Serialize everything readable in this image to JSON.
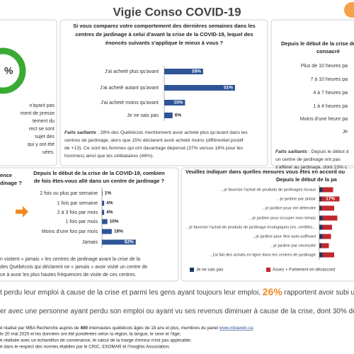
{
  "page_title": "Vigie Conso COVID-19",
  "left_panel": {
    "ring_label": "%",
    "lines": [
      "n'ayant pas",
      "ment de presse",
      "tement du",
      "rect se sont",
      "sujet des",
      "qui y ont été",
      "uées."
    ]
  },
  "chart_data": [
    {
      "type": "bar",
      "title": [
        "Si vous comparez votre comportement des dernières semaines dans les",
        "centres de jardinage à celui d'avant la crise de la COVID-19, lequel des",
        "énoncés suivants s'applique le mieux à vous ?"
      ],
      "categories": [
        "J'ai acheté plus qu'avant",
        "J'ai acheté autant qu'avant",
        "J'ai acheté moins qu'avant",
        "Je ne sais pas"
      ],
      "values": [
        28,
        51,
        15,
        6
      ],
      "value_labels": [
        "28%",
        "51%",
        "15%",
        "6%"
      ],
      "color": "#2f5496",
      "xlim": [
        0,
        100
      ]
    },
    {
      "type": "bar",
      "title": [
        "Depuis le début de la crise de",
        "consacré"
      ],
      "categories": [
        "Plus de 10 heures pa",
        "7 à 10 heures pa",
        "4 à 7 heures pa",
        "1 à 4 heures pa",
        "Moins d'une heure pa",
        "Je"
      ]
    },
    {
      "type": "bar",
      "title": [
        "Depuis le début de la crise de la COVID-19, combien",
        "de fois êtes-vous allé dans un centre de jardinage ?"
      ],
      "categories": [
        "2 fois ou plus par semaine",
        "1 fois par semaine",
        "2 à 3 fois par mois",
        "1 fois par mois",
        "Moins d'une fois par mois",
        "Jamais"
      ],
      "values": [
        1,
        4,
        4,
        10,
        18,
        62
      ],
      "value_labels": [
        "1%",
        "4%",
        "4%",
        "10%",
        "18%",
        "62%"
      ],
      "color": "#2f5496",
      "xlim": [
        0,
        100
      ]
    },
    {
      "type": "stacked-bar",
      "title": [
        "Veuillez indiquer dans quelles mesures vous êtes en accord ou",
        "Depuis le début de la pa"
      ],
      "categories": [
        "...je favorise l'achat de produits de jardinages locaux",
        "...je jardine par plaisir",
        "...je jardine pour me détendre",
        "...je jardine pour occuper mon temps",
        "...je favorise l'achat de produits de jardinage écologiques (ex. certifiés...",
        "...je jardine pour être auto-suffisant",
        "...je jardine par nécessité",
        "...j'ai fait des achats en ligne dans les centres de jardinage"
      ],
      "series": [
        {
          "name": "Je ne sais pas",
          "color": "#1f3864",
          "values": [
            3,
            2,
            2,
            3,
            3,
            3,
            2,
            3
          ]
        },
        {
          "name": "Assez + Fortement en désaccord",
          "color": "#c0282d",
          "values": [
            10,
            17,
            12,
            14,
            9,
            8,
            7,
            11
          ],
          "value_labels": [
            null,
            "17%",
            null,
            null,
            null,
            null,
            null,
            null
          ]
        }
      ],
      "xlim": [
        0,
        100
      ]
    }
  ],
  "highlights_top": {
    "label": "Faits saillants",
    "lines": [
      " : 28% des Québécois mentionnent avoir acheté plus qu'avant dans les",
      "centres de jardinage, alors que 15% déclarent avoir acheté moins (différentiel positif",
      "de +13). Ce sont les femmes qui ont davantage dépensé (37% versus 18% pour les",
      "hommes) ainsi que les célibataires (46%)."
    ]
  },
  "highlights_right": {
    "label": "Faits saillants",
    "lines": [
      " : Depuis le début d",
      "un centre de jardinage ont pas",
      "s'afférer au jardinage, dont 23% c"
    ]
  },
  "middle_left_title": [
    "ence",
    "dinage ?"
  ],
  "frequency_note": [
    "n visitent « jamais » les centres de jardinage avant la crise de la",
    "des Québécois qui déclarent ne « jamais » avoir visité un centre de",
    "ce à avoir les plus hautes fréquences de visite de ces centres."
  ],
  "summary": {
    "line1": [
      "t perdu leur emploi à cause de la crise et parmi les gens ayant toujours leur emploi, ",
      "26%",
      " rapportent avoir subi une"
    ],
    "line2": "er avec une personne ayant perdu son emploi ou ayant vu ses revenus diminuer à cause de la crise, dont 30% des fem"
  },
  "footer": {
    "line1": [
      "é réalisé par MBA Recherche auprès de ",
      "400",
      " internautes québécois âgés de 18 ans et plus, membres du panel ",
      "www.mbaweb.ca",
      ";"
    ],
    "lines": [
      "le 20 mai 2020 et les données ont été pondérées selon la région, la langue, le sexe et l'âge;",
      "é réalisée avec un échantillon de convenance, le calcul de la marge d'erreur n'est pas applicable;",
      "é dans le respect des normes établies par le CRIC, ESOMAR et l'Insights Association;"
    ]
  }
}
